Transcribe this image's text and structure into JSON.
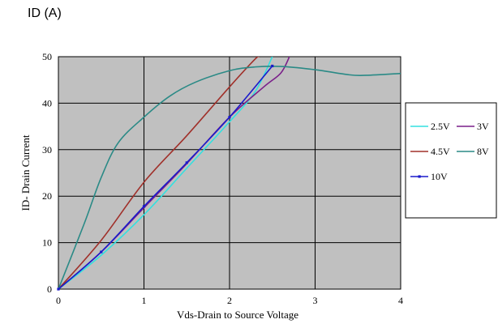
{
  "unit_label": "ID (A)",
  "chart_data": {
    "type": "line",
    "xlabel": "Vds-Drain to Source Voltage",
    "ylabel": "ID- Drain Current",
    "xlim": [
      0,
      4
    ],
    "ylim": [
      0,
      50
    ],
    "xticks": [
      "0",
      "1",
      "2",
      "3",
      "4"
    ],
    "yticks": [
      "0",
      "10",
      "20",
      "30",
      "40",
      "50"
    ],
    "grid": true,
    "plot_background": "#c0c0c0",
    "legend_position": "right",
    "series": [
      {
        "name": "2.5V",
        "color": "#33e0e0",
        "x": [
          0,
          0.5,
          1.0,
          1.5,
          2.0,
          2.3,
          2.5
        ],
        "y": [
          0,
          7.3,
          16,
          26,
          36,
          42.5,
          50
        ]
      },
      {
        "name": "3V",
        "color": "#7a1f8a",
        "x": [
          0,
          0.5,
          1.0,
          1.5,
          2.0,
          2.4,
          2.6,
          2.7
        ],
        "y": [
          0,
          8,
          17.5,
          27,
          37,
          43.5,
          46.5,
          50
        ]
      },
      {
        "name": "4.5V",
        "color": "#a0302a",
        "x": [
          0,
          0.5,
          1.0,
          1.5,
          2.0,
          2.3,
          2.35
        ],
        "y": [
          0,
          10.5,
          23,
          33,
          43.5,
          49.5,
          50
        ]
      },
      {
        "name": "8V",
        "color": "#2a8a86",
        "x": [
          0,
          0.3,
          0.5,
          0.7,
          1.0,
          1.3,
          1.6,
          2.0,
          2.3,
          2.6,
          3.0,
          3.4,
          3.6,
          4.0
        ],
        "y": [
          0,
          14,
          24,
          31.5,
          37,
          41.5,
          44.5,
          47,
          47.8,
          47.9,
          47.2,
          46.1,
          46.0,
          46.4
        ]
      },
      {
        "name": "10V",
        "color": "#1a1acc",
        "x": [
          0,
          0.5,
          1.0,
          1.5,
          2.0,
          2.5
        ],
        "y": [
          0,
          8,
          17.8,
          27.2,
          37,
          48
        ],
        "markers": true
      }
    ]
  }
}
